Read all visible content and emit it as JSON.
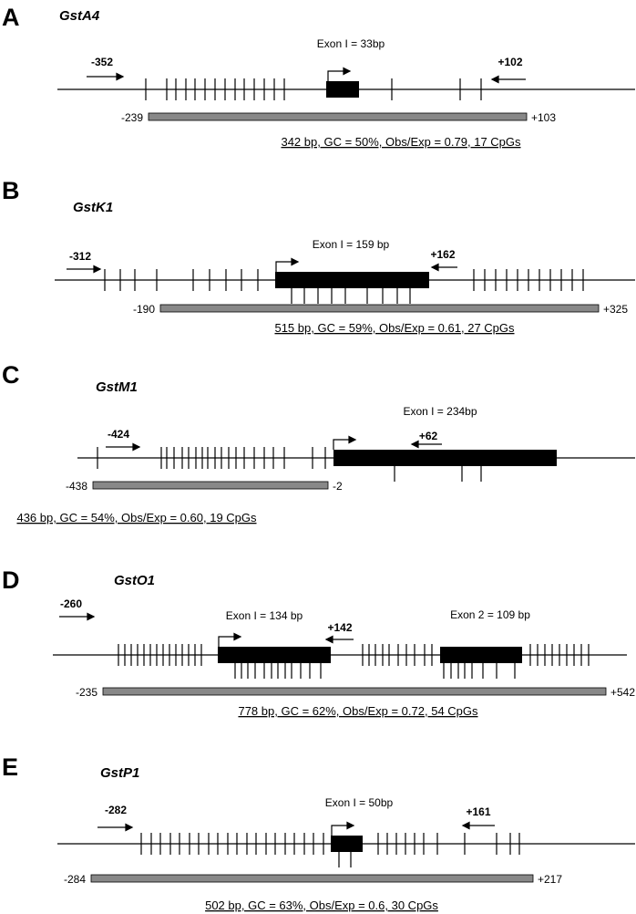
{
  "panels": [
    {
      "letter": "A",
      "gene": "GstA4",
      "exon_labels": [
        "Exon I = 33bp"
      ],
      "forward_primer": "-352",
      "reverse_primer": "+102",
      "island_start": "-239",
      "island_end": "+103",
      "summary": "342 bp, GC = 50%, Obs/Exp = 0.79, 17 CpGs"
    },
    {
      "letter": "B",
      "gene": "GstK1",
      "exon_labels": [
        "Exon I = 159 bp"
      ],
      "forward_primer": "-312",
      "reverse_primer": "+162",
      "island_start": "-190",
      "island_end": "+325",
      "summary": "515 bp, GC = 59%, Obs/Exp = 0.61, 27 CpGs"
    },
    {
      "letter": "C",
      "gene": "GstM1",
      "exon_labels": [
        "Exon I = 234bp"
      ],
      "forward_primer": "-424",
      "reverse_primer": "+62",
      "island_start": "-438",
      "island_end": "-2",
      "summary": "436 bp, GC = 54%, Obs/Exp = 0.60, 19 CpGs"
    },
    {
      "letter": "D",
      "gene": "GstO1",
      "exon_labels": [
        "Exon I = 134 bp",
        "Exon 2 = 109 bp"
      ],
      "forward_primer": "-260",
      "reverse_primer": "+142",
      "island_start": "-235",
      "island_end": "+542",
      "summary": "778 bp, GC = 62%, Obs/Exp = 0.72, 54 CpGs"
    },
    {
      "letter": "E",
      "gene": "GstP1",
      "exon_labels": [
        "Exon I = 50bp"
      ],
      "forward_primer": "-282",
      "reverse_primer": "+161",
      "island_start": "-284",
      "island_end": "+217",
      "summary": "502 bp, GC = 63%, Obs/Exp = 0.6, 30 CpGs"
    }
  ]
}
